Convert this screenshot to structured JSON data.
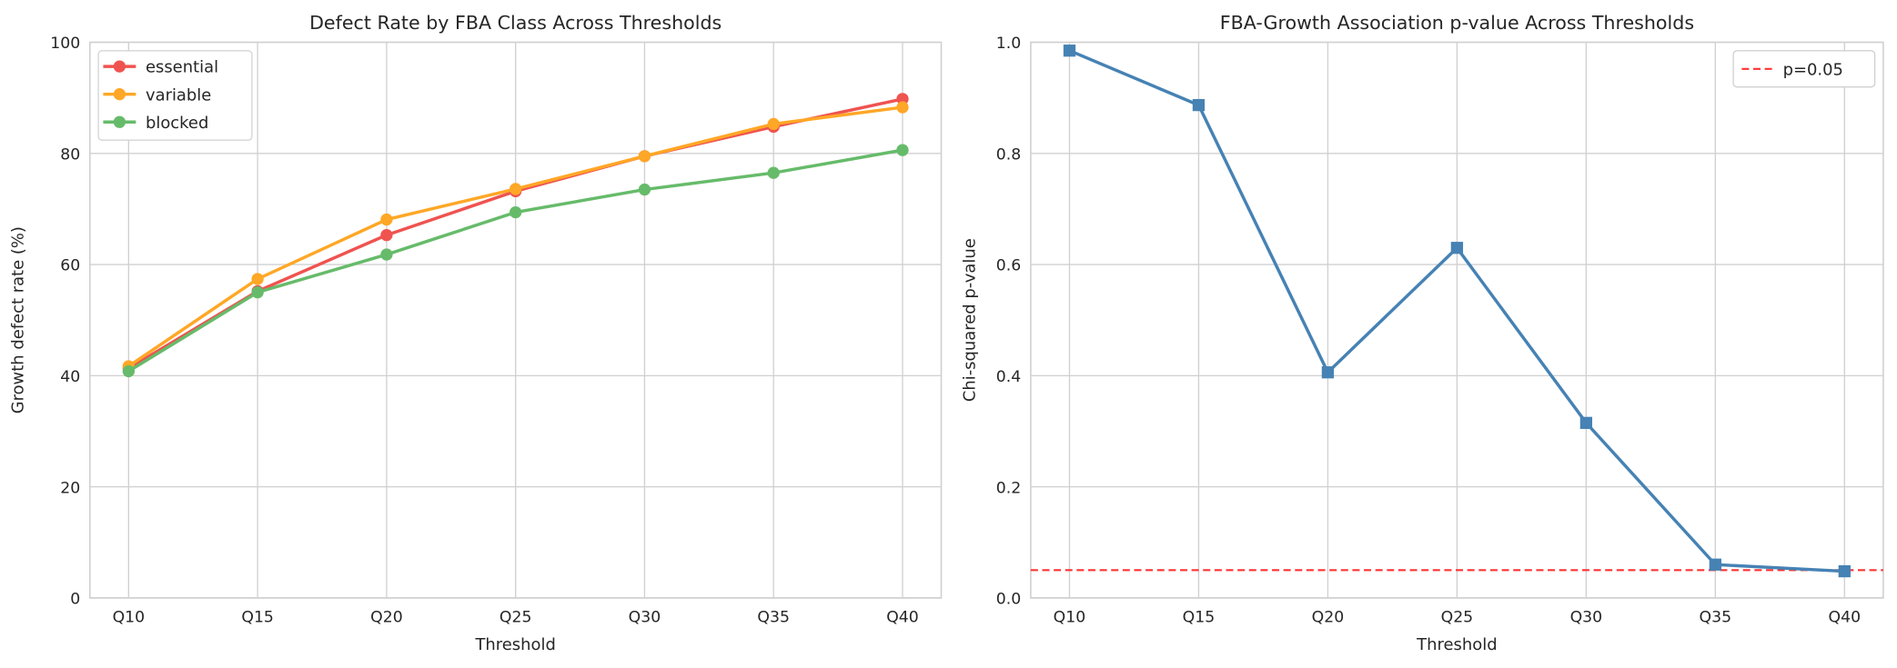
{
  "chart_data": [
    {
      "type": "line",
      "title": "Defect Rate by FBA Class Across Thresholds",
      "xlabel": "Threshold",
      "ylabel": "Growth defect rate (%)",
      "categories": [
        "Q10",
        "Q15",
        "Q20",
        "Q25",
        "Q30",
        "Q35",
        "Q40"
      ],
      "ylim": [
        0,
        100
      ],
      "yticks": [
        0,
        20,
        40,
        60,
        80,
        100
      ],
      "grid": true,
      "legend": "top-left",
      "marker": "circle",
      "series": [
        {
          "name": "essential",
          "color": "#ef5350",
          "values": [
            41.3,
            55.2,
            65.3,
            73.2,
            79.5,
            84.8,
            89.8
          ]
        },
        {
          "name": "variable",
          "color": "#ffa726",
          "values": [
            41.7,
            57.4,
            68.1,
            73.6,
            79.5,
            85.3,
            88.3
          ]
        },
        {
          "name": "blocked",
          "color": "#66bb6a",
          "values": [
            40.8,
            55.0,
            61.8,
            69.4,
            73.5,
            76.5,
            80.6
          ]
        }
      ]
    },
    {
      "type": "line",
      "title": "FBA-Growth Association p-value Across Thresholds",
      "xlabel": "Threshold",
      "ylabel": "Chi-squared p-value",
      "categories": [
        "Q10",
        "Q15",
        "Q20",
        "Q25",
        "Q30",
        "Q35",
        "Q40"
      ],
      "ylim": [
        0,
        1.0
      ],
      "yticks": [
        "0.0",
        "0.2",
        "0.4",
        "0.6",
        "0.8",
        "1.0"
      ],
      "grid": true,
      "legend": "top-right",
      "marker": "square",
      "series": [
        {
          "color": "#4682b4",
          "values": [
            0.985,
            0.887,
            0.406,
            0.63,
            0.315,
            0.06,
            0.048
          ]
        }
      ],
      "reference_line": {
        "name": "p=0.05",
        "value": 0.05,
        "color": "#ff3333",
        "style": "dashed"
      }
    }
  ]
}
